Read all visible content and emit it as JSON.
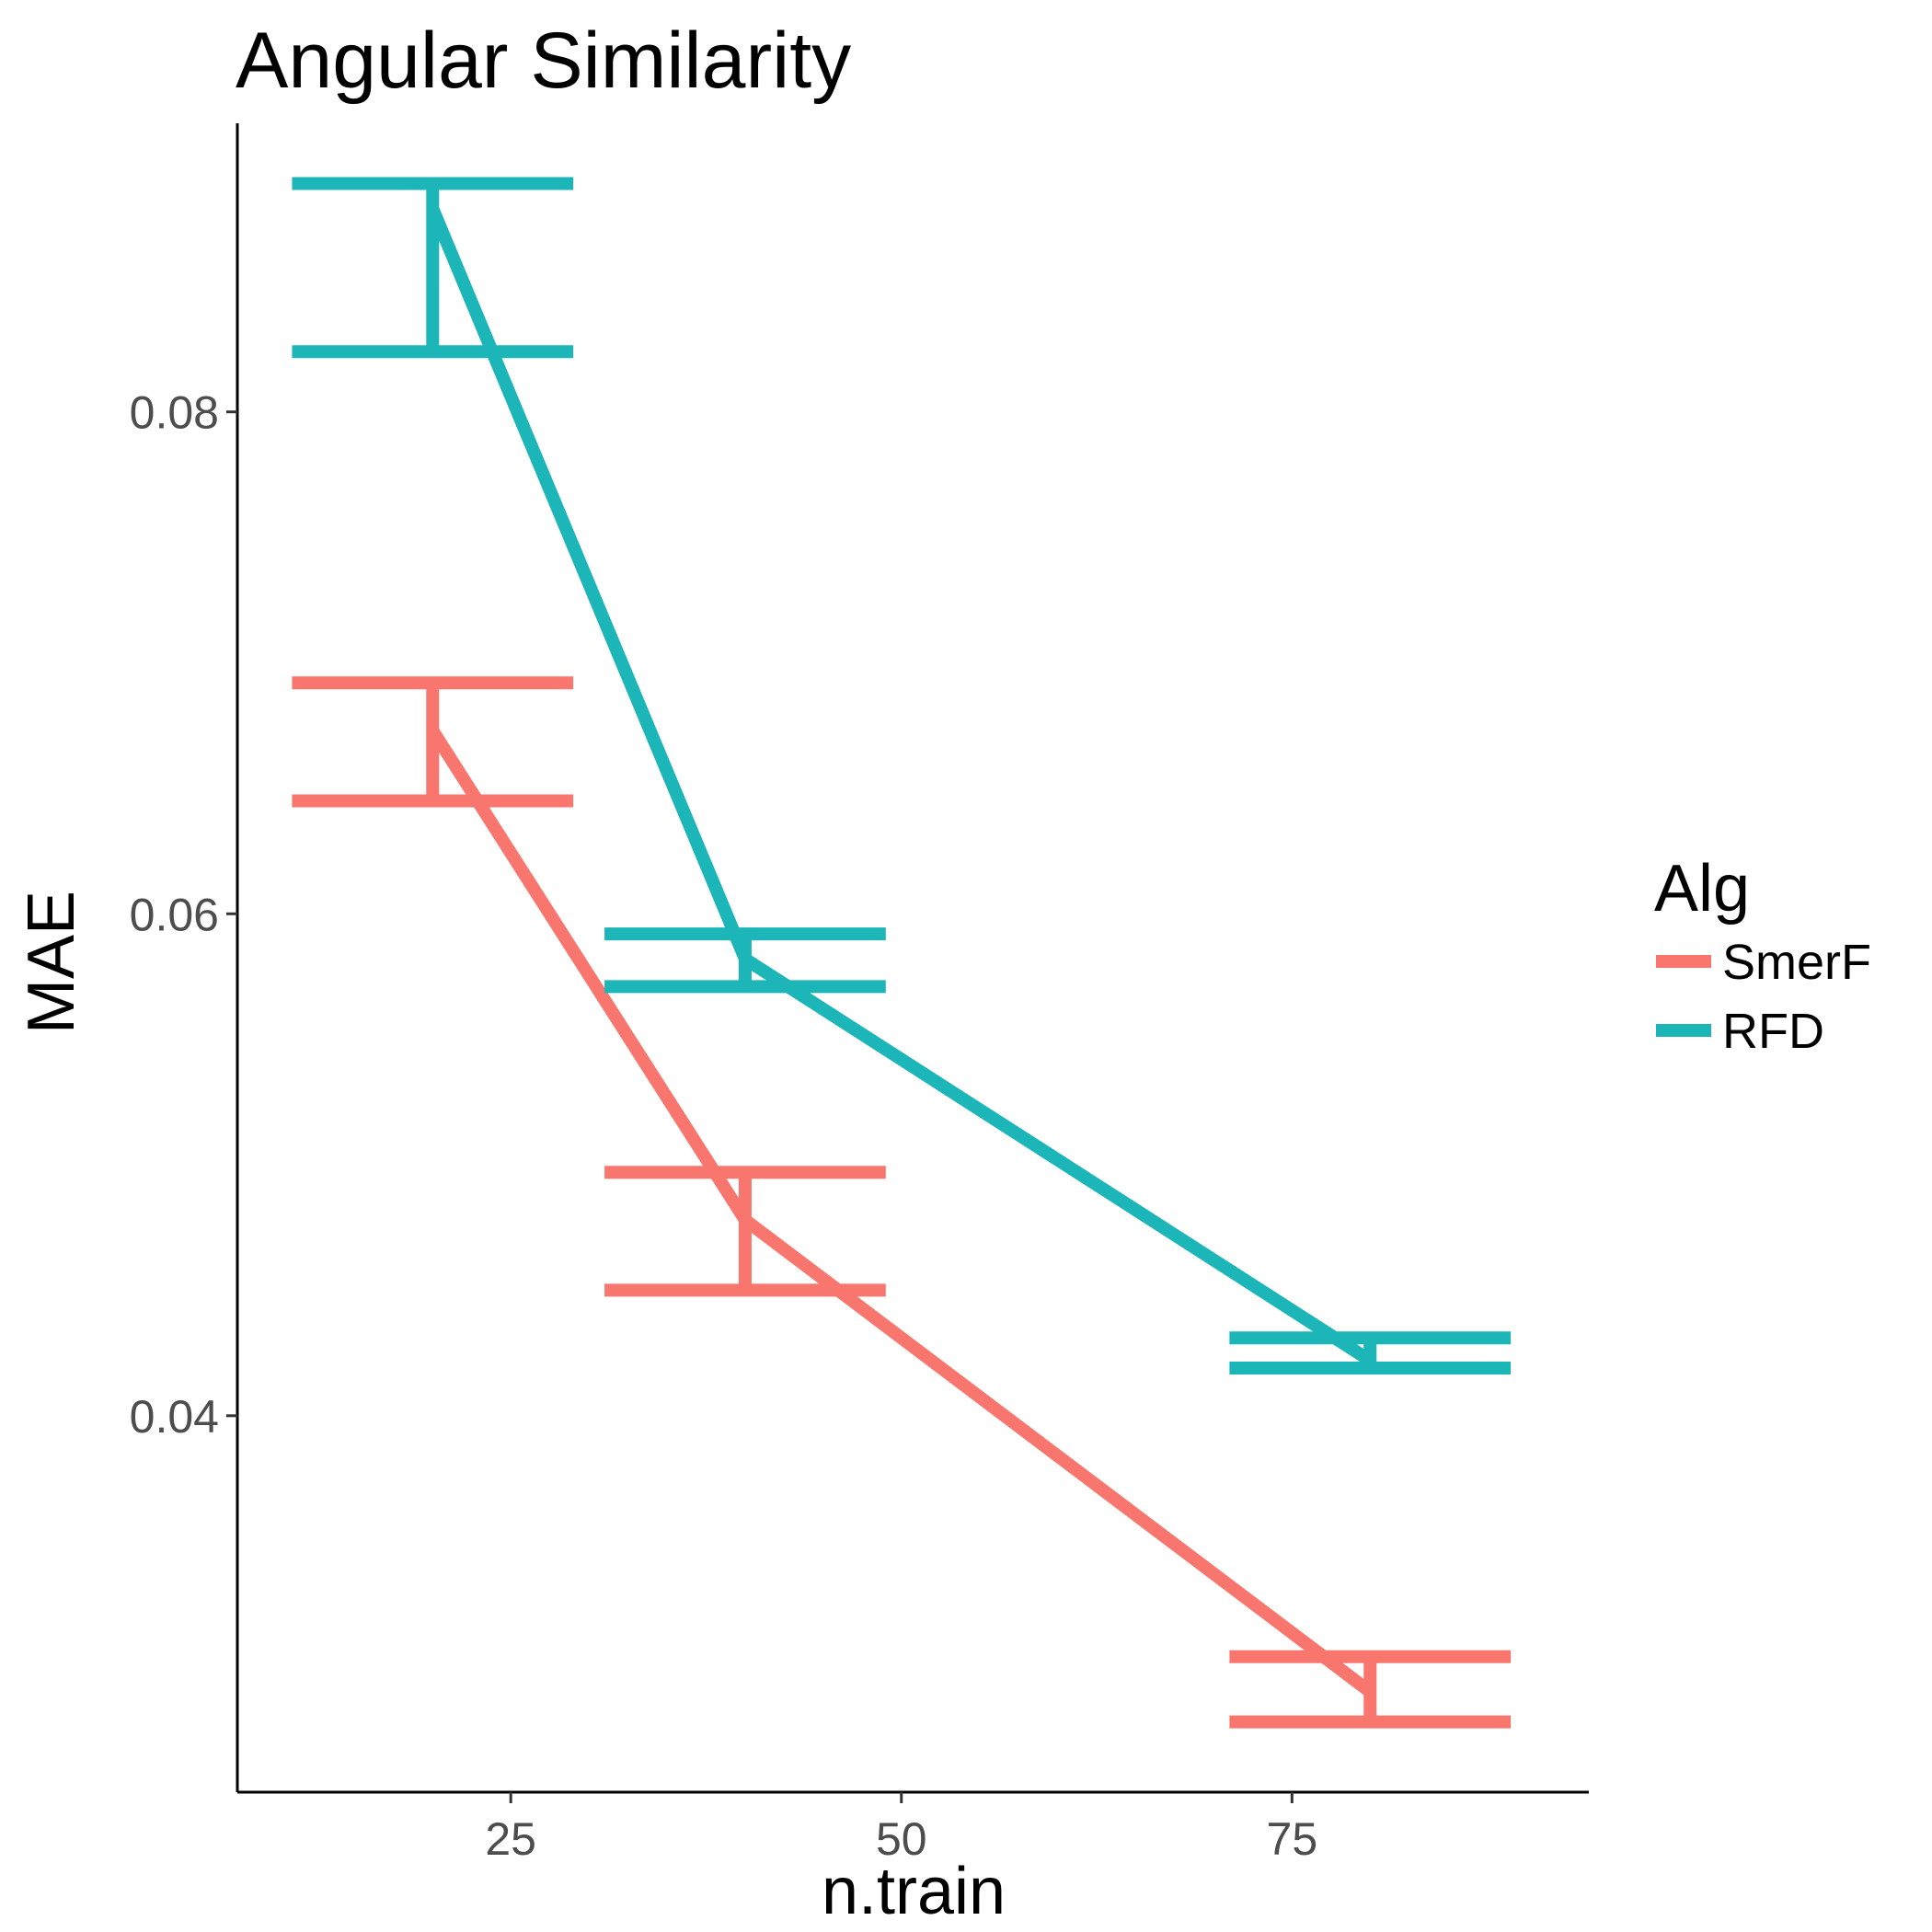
{
  "chart_data": {
    "type": "line",
    "title": "Angular Similarity",
    "xlabel": "n.train",
    "ylabel": "MAE",
    "x_ticks": [
      "25",
      "50",
      "75"
    ],
    "y_ticks": [
      "0.04",
      "0.06",
      "0.08"
    ],
    "xlim": [
      7.5,
      94
    ],
    "ylim": [
      0.025,
      0.0915
    ],
    "grid": false,
    "legend_title": "Alg",
    "legend_position": "right",
    "series": [
      {
        "name": "SmerF",
        "color": "#F8766D",
        "x": [
          20,
          40,
          80
        ],
        "y": [
          0.0673,
          0.0478,
          0.029
        ],
        "ymin": [
          0.0645,
          0.045,
          0.0278
        ],
        "ymax": [
          0.0692,
          0.0497,
          0.0304
        ]
      },
      {
        "name": "RFD",
        "color": "#1CB5B8",
        "x": [
          20,
          40,
          80
        ],
        "y": [
          0.0881,
          0.0582,
          0.0422
        ],
        "ymin": [
          0.0824,
          0.0571,
          0.0419
        ],
        "ymax": [
          0.0891,
          0.0592,
          0.0431
        ]
      }
    ],
    "errorbar_halfwidth": 9
  }
}
